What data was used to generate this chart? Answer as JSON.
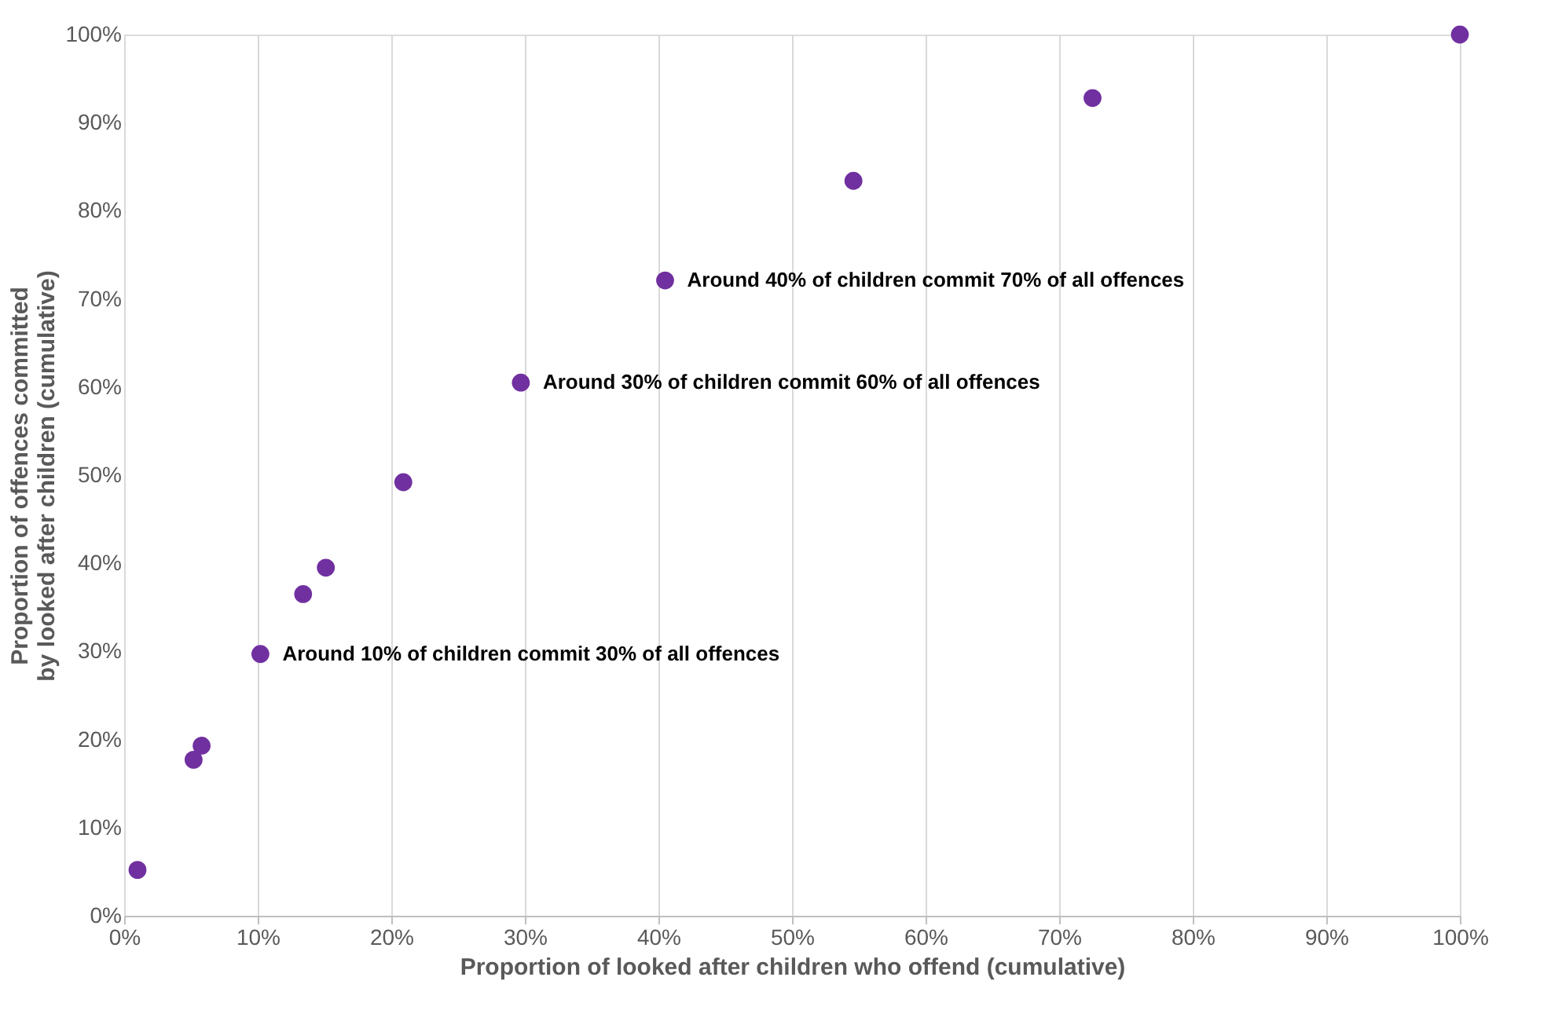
{
  "chart_data": {
    "type": "scatter",
    "xlabel": "Proportion of looked after children who offend (cumulative)",
    "ylabel": "Proportion of offences committed\nby looked after children (cumulative)",
    "x": [
      1,
      5.2,
      5.8,
      10.2,
      13.4,
      15.1,
      20.9,
      29.7,
      40.5,
      54.6,
      72.5,
      100
    ],
    "series": [
      {
        "color": "#7030a0",
        "values": [
          5.2,
          17.7,
          19.3,
          29.7,
          36.5,
          39.5,
          49.2,
          60.5,
          72.1,
          83.4,
          92.8,
          100
        ]
      }
    ],
    "xlim": [
      0,
      100
    ],
    "ylim": [
      0,
      100
    ],
    "xticks": [
      {
        "value": 0,
        "label": "0%"
      },
      {
        "value": 10,
        "label": "10%"
      },
      {
        "value": 20,
        "label": "20%"
      },
      {
        "value": 30,
        "label": "30%"
      },
      {
        "value": 40,
        "label": "40%"
      },
      {
        "value": 50,
        "label": "50%"
      },
      {
        "value": 60,
        "label": "60%"
      },
      {
        "value": 70,
        "label": "70%"
      },
      {
        "value": 80,
        "label": "80%"
      },
      {
        "value": 90,
        "label": "90%"
      },
      {
        "value": 100,
        "label": "100%"
      }
    ],
    "yticks": [
      {
        "value": 0,
        "label": "0%"
      },
      {
        "value": 10,
        "label": "10%"
      },
      {
        "value": 20,
        "label": "20%"
      },
      {
        "value": 30,
        "label": "30%"
      },
      {
        "value": 40,
        "label": "40%"
      },
      {
        "value": 50,
        "label": "50%"
      },
      {
        "value": 60,
        "label": "60%"
      },
      {
        "value": 70,
        "label": "70%"
      },
      {
        "value": 80,
        "label": "80%"
      },
      {
        "value": 90,
        "label": "90%"
      },
      {
        "value": 100,
        "label": "100%"
      }
    ],
    "grid": "x",
    "marker": "circle",
    "legend": false,
    "annotations": [
      {
        "text": "Around 40% of children commit 70% of all offences",
        "x": 40.5,
        "y": 72.1
      },
      {
        "text": "Around 30% of children commit 60% of all offences",
        "x": 29.7,
        "y": 60.5
      },
      {
        "text": "Around 10% of children commit 30% of all offences",
        "x": 10.2,
        "y": 29.7
      }
    ]
  }
}
